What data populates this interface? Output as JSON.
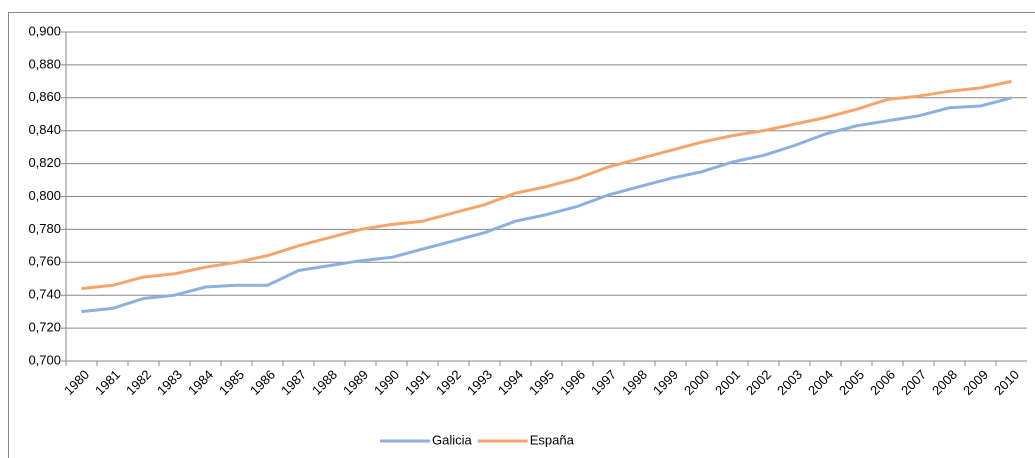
{
  "chart_data": {
    "type": "line",
    "categories": [
      "1980",
      "1981",
      "1982",
      "1983",
      "1984",
      "1985",
      "1986",
      "1987",
      "1988",
      "1989",
      "1990",
      "1991",
      "1992",
      "1993",
      "1994",
      "1995",
      "1996",
      "1997",
      "1998",
      "1999",
      "2000",
      "2001",
      "2002",
      "2003",
      "2004",
      "2005",
      "2006",
      "2007",
      "2008",
      "2009",
      "2010"
    ],
    "series": [
      {
        "name": "Galicia",
        "color": "#8cb0e0",
        "values": [
          0.73,
          0.732,
          0.738,
          0.74,
          0.745,
          0.746,
          0.746,
          0.755,
          0.758,
          0.761,
          0.763,
          0.768,
          0.773,
          0.778,
          0.785,
          0.789,
          0.794,
          0.801,
          0.806,
          0.811,
          0.815,
          0.821,
          0.825,
          0.831,
          0.838,
          0.843,
          0.846,
          0.849,
          0.854,
          0.855,
          0.86
        ]
      },
      {
        "name": "España",
        "color": "#f5a56a",
        "values": [
          0.744,
          0.746,
          0.751,
          0.753,
          0.757,
          0.76,
          0.764,
          0.77,
          0.775,
          0.78,
          0.783,
          0.785,
          0.79,
          0.795,
          0.802,
          0.806,
          0.811,
          0.818,
          0.823,
          0.828,
          0.833,
          0.837,
          0.84,
          0.844,
          0.848,
          0.853,
          0.859,
          0.861,
          0.864,
          0.866,
          0.87
        ]
      }
    ],
    "ylim": [
      0.7,
      0.9
    ],
    "yticks": [
      {
        "value": 0.7,
        "label": "0,700"
      },
      {
        "value": 0.72,
        "label": "0,720"
      },
      {
        "value": 0.74,
        "label": "0,740"
      },
      {
        "value": 0.76,
        "label": "0,760"
      },
      {
        "value": 0.78,
        "label": "0,780"
      },
      {
        "value": 0.8,
        "label": "0,800"
      },
      {
        "value": 0.82,
        "label": "0,820"
      },
      {
        "value": 0.84,
        "label": "0,840"
      },
      {
        "value": 0.86,
        "label": "0,860"
      },
      {
        "value": 0.88,
        "label": "0,880"
      },
      {
        "value": 0.9,
        "label": "0,900"
      }
    ],
    "grid": true,
    "legend": "bottom"
  }
}
